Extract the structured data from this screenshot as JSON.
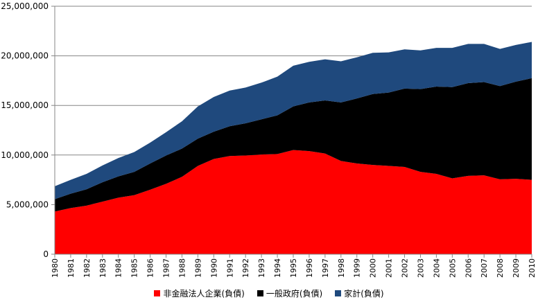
{
  "chart_data": {
    "type": "area",
    "stacked": true,
    "title": "",
    "xlabel": "",
    "ylabel": "",
    "ylim": [
      0,
      25000000
    ],
    "y_ticks": [
      0,
      5000000,
      10000000,
      15000000,
      20000000,
      25000000
    ],
    "y_tick_labels": [
      "0",
      "5,000,000",
      "10,000,000",
      "15,000,000",
      "20,000,000",
      "25,000,000"
    ],
    "grid": true,
    "legend_position": "bottom",
    "x": [
      "1980",
      "1981",
      "1982",
      "1983",
      "1984",
      "1985",
      "1986",
      "1987",
      "1988",
      "1989",
      "1990",
      "1991",
      "1992",
      "1993",
      "1994",
      "1995",
      "1996",
      "1997",
      "1998",
      "1999",
      "2000",
      "2001",
      "2002",
      "2003",
      "2004",
      "2005",
      "2006",
      "2007",
      "2008",
      "2009",
      "2010"
    ],
    "series": [
      {
        "name": "非金融法人企業(負債)",
        "color": "#ff0000",
        "values": [
          4300000,
          4650000,
          4900000,
          5300000,
          5700000,
          5950000,
          6500000,
          7100000,
          7800000,
          8900000,
          9600000,
          9900000,
          9950000,
          10050000,
          10100000,
          10500000,
          10400000,
          10150000,
          9400000,
          9150000,
          9000000,
          8900000,
          8800000,
          8300000,
          8100000,
          7650000,
          7900000,
          7950000,
          7550000,
          7600000,
          7500000
        ]
      },
      {
        "name": "一般政府(負債)",
        "color": "#000000",
        "values": [
          1250000,
          1450000,
          1650000,
          1950000,
          2150000,
          2350000,
          2650000,
          2850000,
          2850000,
          2750000,
          2750000,
          3000000,
          3250000,
          3550000,
          3900000,
          4400000,
          4900000,
          5350000,
          5900000,
          6550000,
          7150000,
          7400000,
          7900000,
          8350000,
          8800000,
          9200000,
          9350000,
          9400000,
          9400000,
          9800000,
          10250000
        ]
      },
      {
        "name": "家計(負債)",
        "color": "#1f497d",
        "values": [
          1300000,
          1400000,
          1550000,
          1700000,
          1850000,
          2000000,
          2100000,
          2350000,
          2750000,
          3250000,
          3500000,
          3600000,
          3600000,
          3700000,
          3900000,
          4100000,
          4100000,
          4150000,
          4150000,
          4150000,
          4150000,
          4050000,
          3950000,
          3900000,
          3900000,
          3950000,
          3950000,
          3850000,
          3750000,
          3700000,
          3650000
        ]
      }
    ]
  }
}
